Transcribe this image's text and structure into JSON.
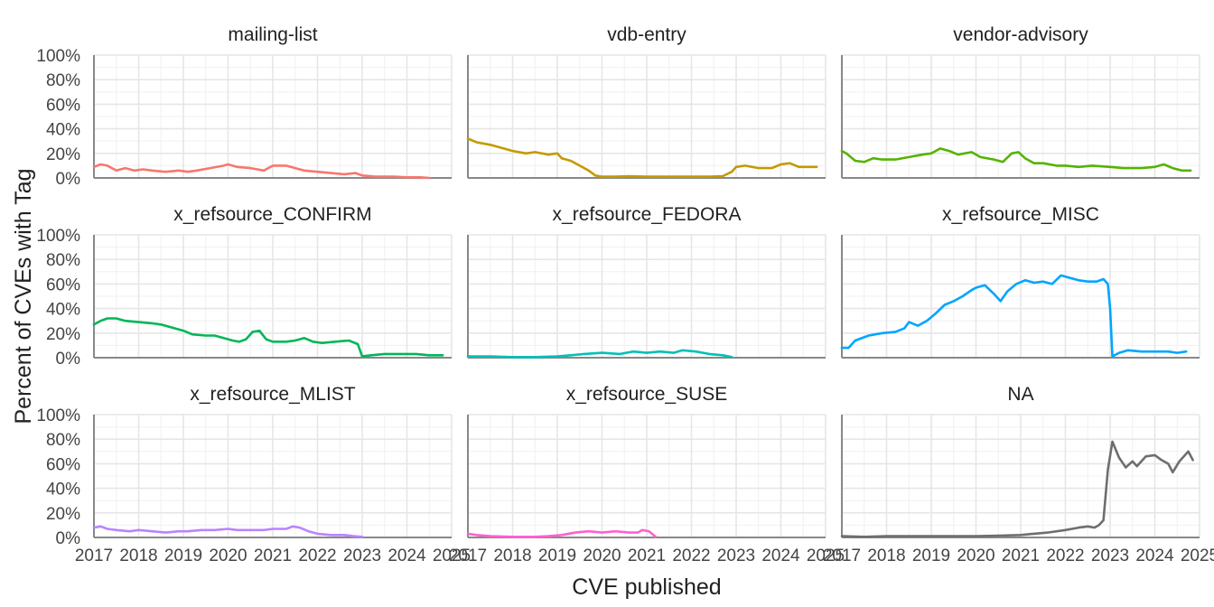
{
  "chart_data": {
    "type": "line",
    "layout": "facet-grid",
    "xlabel": "CVE published",
    "ylabel": "Percent of CVEs with Tag",
    "xlim": [
      2017,
      2025
    ],
    "ylim": [
      0,
      100
    ],
    "x_ticks": [
      "2017",
      "2018",
      "2019",
      "2020",
      "2021",
      "2022",
      "2023",
      "2024",
      "2025"
    ],
    "y_ticks": [
      "0%",
      "20%",
      "40%",
      "60%",
      "80%",
      "100%"
    ],
    "y_tick_values": [
      0,
      20,
      40,
      60,
      80,
      100
    ],
    "grid": true,
    "panels": [
      {
        "title": "mailing-list",
        "color": "#F8766D",
        "points": [
          [
            2017.0,
            9
          ],
          [
            2017.15,
            11
          ],
          [
            2017.3,
            10
          ],
          [
            2017.5,
            6
          ],
          [
            2017.7,
            8
          ],
          [
            2017.9,
            6
          ],
          [
            2018.1,
            7
          ],
          [
            2018.3,
            6
          ],
          [
            2018.6,
            5
          ],
          [
            2018.9,
            6
          ],
          [
            2019.1,
            5
          ],
          [
            2019.3,
            6
          ],
          [
            2019.6,
            8
          ],
          [
            2019.9,
            10
          ],
          [
            2020.0,
            11
          ],
          [
            2020.2,
            9
          ],
          [
            2020.5,
            8
          ],
          [
            2020.8,
            6
          ],
          [
            2021.0,
            10
          ],
          [
            2021.3,
            10
          ],
          [
            2021.5,
            8
          ],
          [
            2021.7,
            6
          ],
          [
            2022.0,
            5
          ],
          [
            2022.3,
            4
          ],
          [
            2022.6,
            3
          ],
          [
            2022.85,
            4
          ],
          [
            2023.0,
            2
          ],
          [
            2023.3,
            1
          ],
          [
            2023.7,
            1
          ],
          [
            2024.0,
            0.5
          ],
          [
            2024.3,
            0.5
          ],
          [
            2024.5,
            0
          ]
        ]
      },
      {
        "title": "vdb-entry",
        "color": "#C49A00",
        "points": [
          [
            2017.0,
            32
          ],
          [
            2017.2,
            29
          ],
          [
            2017.5,
            27
          ],
          [
            2017.8,
            24
          ],
          [
            2018.0,
            22
          ],
          [
            2018.3,
            20
          ],
          [
            2018.5,
            21
          ],
          [
            2018.8,
            19
          ],
          [
            2019.0,
            20
          ],
          [
            2019.1,
            16
          ],
          [
            2019.3,
            14
          ],
          [
            2019.5,
            10
          ],
          [
            2019.7,
            6
          ],
          [
            2019.85,
            2
          ],
          [
            2020.0,
            1
          ],
          [
            2020.3,
            1
          ],
          [
            2020.6,
            1.5
          ],
          [
            2021.0,
            1
          ],
          [
            2021.5,
            1
          ],
          [
            2022.0,
            1
          ],
          [
            2022.4,
            1
          ],
          [
            2022.7,
            1.5
          ],
          [
            2022.9,
            5
          ],
          [
            2023.0,
            9
          ],
          [
            2023.2,
            10
          ],
          [
            2023.5,
            8
          ],
          [
            2023.8,
            8
          ],
          [
            2024.0,
            11
          ],
          [
            2024.2,
            12
          ],
          [
            2024.4,
            9
          ],
          [
            2024.7,
            9
          ],
          [
            2024.8,
            9
          ]
        ]
      },
      {
        "title": "vendor-advisory",
        "color": "#53B400",
        "points": [
          [
            2017.0,
            22
          ],
          [
            2017.1,
            20
          ],
          [
            2017.3,
            14
          ],
          [
            2017.5,
            13
          ],
          [
            2017.7,
            16
          ],
          [
            2017.9,
            15
          ],
          [
            2018.2,
            15
          ],
          [
            2018.5,
            17
          ],
          [
            2018.8,
            19
          ],
          [
            2019.0,
            20
          ],
          [
            2019.2,
            24
          ],
          [
            2019.4,
            22
          ],
          [
            2019.6,
            19
          ],
          [
            2019.9,
            21
          ],
          [
            2020.1,
            17
          ],
          [
            2020.4,
            15
          ],
          [
            2020.6,
            13
          ],
          [
            2020.8,
            20
          ],
          [
            2020.95,
            21
          ],
          [
            2021.1,
            16
          ],
          [
            2021.3,
            12
          ],
          [
            2021.5,
            12
          ],
          [
            2021.8,
            10
          ],
          [
            2022.0,
            10
          ],
          [
            2022.3,
            9
          ],
          [
            2022.6,
            10
          ],
          [
            2023.0,
            9
          ],
          [
            2023.3,
            8
          ],
          [
            2023.7,
            8
          ],
          [
            2024.0,
            9
          ],
          [
            2024.2,
            11
          ],
          [
            2024.4,
            8
          ],
          [
            2024.6,
            6
          ],
          [
            2024.8,
            6
          ]
        ]
      },
      {
        "title": "x_refsource_CONFIRM",
        "color": "#00B658",
        "points": [
          [
            2017.0,
            27
          ],
          [
            2017.15,
            30
          ],
          [
            2017.3,
            32
          ],
          [
            2017.5,
            32
          ],
          [
            2017.7,
            30
          ],
          [
            2018.0,
            29
          ],
          [
            2018.3,
            28
          ],
          [
            2018.5,
            27
          ],
          [
            2018.8,
            24
          ],
          [
            2019.0,
            22
          ],
          [
            2019.2,
            19
          ],
          [
            2019.5,
            18
          ],
          [
            2019.7,
            18
          ],
          [
            2019.9,
            16
          ],
          [
            2020.1,
            14
          ],
          [
            2020.25,
            13
          ],
          [
            2020.4,
            15
          ],
          [
            2020.55,
            21
          ],
          [
            2020.7,
            22
          ],
          [
            2020.85,
            15
          ],
          [
            2021.0,
            13
          ],
          [
            2021.3,
            13
          ],
          [
            2021.5,
            14
          ],
          [
            2021.7,
            16
          ],
          [
            2021.9,
            13
          ],
          [
            2022.1,
            12
          ],
          [
            2022.4,
            13
          ],
          [
            2022.7,
            14
          ],
          [
            2022.9,
            11
          ],
          [
            2023.0,
            1
          ],
          [
            2023.2,
            2
          ],
          [
            2023.5,
            3
          ],
          [
            2023.8,
            3
          ],
          [
            2024.2,
            3
          ],
          [
            2024.5,
            2
          ],
          [
            2024.8,
            2
          ]
        ]
      },
      {
        "title": "x_refsource_FEDORA",
        "color": "#00C0B8",
        "points": [
          [
            2017.0,
            1
          ],
          [
            2017.5,
            1
          ],
          [
            2018.0,
            0.5
          ],
          [
            2018.5,
            0.5
          ],
          [
            2019.0,
            1
          ],
          [
            2019.3,
            2
          ],
          [
            2019.6,
            3
          ],
          [
            2020.0,
            4
          ],
          [
            2020.4,
            3
          ],
          [
            2020.7,
            5
          ],
          [
            2021.0,
            4
          ],
          [
            2021.3,
            5
          ],
          [
            2021.6,
            4
          ],
          [
            2021.8,
            6
          ],
          [
            2022.1,
            5
          ],
          [
            2022.4,
            3
          ],
          [
            2022.7,
            2
          ],
          [
            2022.9,
            0.5
          ]
        ]
      },
      {
        "title": "x_refsource_MISC",
        "color": "#00A5FF",
        "points": [
          [
            2017.0,
            8
          ],
          [
            2017.15,
            8
          ],
          [
            2017.3,
            14
          ],
          [
            2017.6,
            18
          ],
          [
            2017.9,
            20
          ],
          [
            2018.2,
            21
          ],
          [
            2018.4,
            24
          ],
          [
            2018.5,
            29
          ],
          [
            2018.7,
            26
          ],
          [
            2018.9,
            30
          ],
          [
            2019.0,
            33
          ],
          [
            2019.1,
            36
          ],
          [
            2019.3,
            43
          ],
          [
            2019.5,
            46
          ],
          [
            2019.7,
            50
          ],
          [
            2019.9,
            55
          ],
          [
            2020.0,
            57
          ],
          [
            2020.2,
            59
          ],
          [
            2020.4,
            52
          ],
          [
            2020.55,
            46
          ],
          [
            2020.7,
            54
          ],
          [
            2020.9,
            60
          ],
          [
            2021.1,
            63
          ],
          [
            2021.3,
            61
          ],
          [
            2021.5,
            62
          ],
          [
            2021.7,
            60
          ],
          [
            2021.9,
            67
          ],
          [
            2022.1,
            65
          ],
          [
            2022.3,
            63
          ],
          [
            2022.5,
            62
          ],
          [
            2022.7,
            62
          ],
          [
            2022.85,
            64
          ],
          [
            2022.95,
            60
          ],
          [
            2023.0,
            40
          ],
          [
            2023.05,
            1
          ],
          [
            2023.2,
            4
          ],
          [
            2023.4,
            6
          ],
          [
            2023.7,
            5
          ],
          [
            2024.0,
            5
          ],
          [
            2024.3,
            5
          ],
          [
            2024.5,
            4
          ],
          [
            2024.7,
            5
          ]
        ]
      },
      {
        "title": "x_refsource_MLIST",
        "color": "#B983FF",
        "points": [
          [
            2017.0,
            8
          ],
          [
            2017.15,
            9
          ],
          [
            2017.3,
            7
          ],
          [
            2017.5,
            6
          ],
          [
            2017.8,
            5
          ],
          [
            2018.0,
            6
          ],
          [
            2018.3,
            5
          ],
          [
            2018.6,
            4
          ],
          [
            2018.9,
            5
          ],
          [
            2019.1,
            5
          ],
          [
            2019.4,
            6
          ],
          [
            2019.7,
            6
          ],
          [
            2020.0,
            7
          ],
          [
            2020.2,
            6
          ],
          [
            2020.5,
            6
          ],
          [
            2020.8,
            6
          ],
          [
            2021.0,
            7
          ],
          [
            2021.3,
            7
          ],
          [
            2021.45,
            9
          ],
          [
            2021.6,
            8
          ],
          [
            2021.8,
            5
          ],
          [
            2022.0,
            3
          ],
          [
            2022.3,
            2
          ],
          [
            2022.6,
            2
          ],
          [
            2022.8,
            1
          ],
          [
            2023.0,
            0.5
          ]
        ]
      },
      {
        "title": "x_refsource_SUSE",
        "color": "#FD61D1",
        "points": [
          [
            2017.0,
            3
          ],
          [
            2017.2,
            2
          ],
          [
            2017.5,
            1
          ],
          [
            2018.0,
            0.5
          ],
          [
            2018.5,
            0.5
          ],
          [
            2018.8,
            1
          ],
          [
            2019.1,
            2
          ],
          [
            2019.4,
            4
          ],
          [
            2019.7,
            5
          ],
          [
            2020.0,
            4
          ],
          [
            2020.3,
            5
          ],
          [
            2020.6,
            4
          ],
          [
            2020.8,
            4
          ],
          [
            2020.9,
            6
          ],
          [
            2021.05,
            5
          ],
          [
            2021.2,
            0.5
          ]
        ]
      },
      {
        "title": "NA",
        "color": "#6E6E6E",
        "points": [
          [
            2017.0,
            1
          ],
          [
            2017.5,
            0.5
          ],
          [
            2018.0,
            1
          ],
          [
            2018.5,
            1
          ],
          [
            2019.0,
            1
          ],
          [
            2019.5,
            1
          ],
          [
            2020.0,
            1
          ],
          [
            2020.5,
            1.5
          ],
          [
            2021.0,
            2
          ],
          [
            2021.3,
            3
          ],
          [
            2021.6,
            4
          ],
          [
            2022.0,
            6
          ],
          [
            2022.3,
            8
          ],
          [
            2022.5,
            9
          ],
          [
            2022.65,
            8
          ],
          [
            2022.75,
            10
          ],
          [
            2022.85,
            14
          ],
          [
            2022.95,
            55
          ],
          [
            2023.05,
            78
          ],
          [
            2023.2,
            65
          ],
          [
            2023.35,
            57
          ],
          [
            2023.5,
            62
          ],
          [
            2023.6,
            58
          ],
          [
            2023.8,
            66
          ],
          [
            2024.0,
            67
          ],
          [
            2024.15,
            63
          ],
          [
            2024.3,
            60
          ],
          [
            2024.4,
            53
          ],
          [
            2024.55,
            62
          ],
          [
            2024.75,
            70
          ],
          [
            2024.85,
            63
          ]
        ]
      }
    ]
  }
}
